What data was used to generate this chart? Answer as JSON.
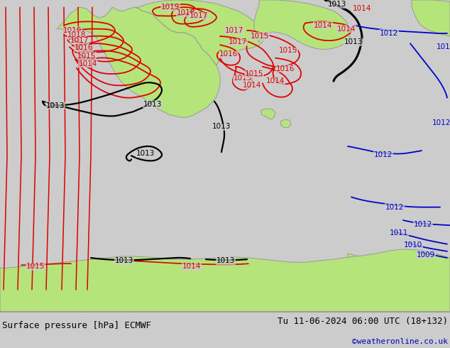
{
  "title_left": "Surface pressure [hPa] ECMWF",
  "title_right": "Tu 11-06-2024 06:00 UTC (18+132)",
  "credit": "©weatheronline.co.uk",
  "credit_color": "#0000bb",
  "background_color": "#cccccc",
  "land_color": "#b4e47a",
  "coast_color": "#999999",
  "red": "#dd0000",
  "black": "#000000",
  "blue": "#0000cc",
  "figsize": [
    6.34,
    4.9
  ],
  "dpi": 100
}
